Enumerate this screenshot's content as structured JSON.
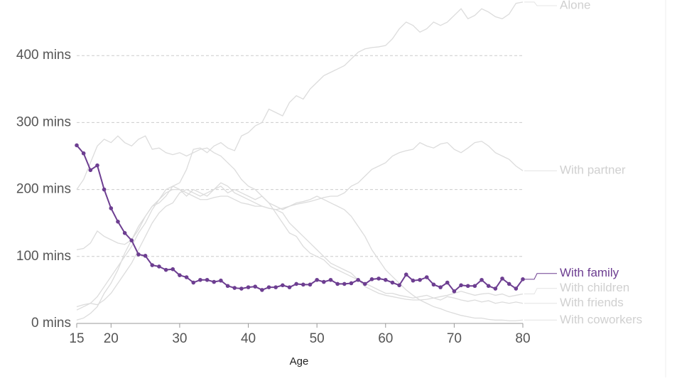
{
  "chart_data": {
    "type": "line",
    "x_label": "Age",
    "x": [
      15,
      16,
      17,
      18,
      19,
      20,
      21,
      22,
      23,
      24,
      25,
      26,
      27,
      28,
      29,
      30,
      31,
      32,
      33,
      34,
      35,
      36,
      37,
      38,
      39,
      40,
      41,
      42,
      43,
      44,
      45,
      46,
      47,
      48,
      49,
      50,
      51,
      52,
      53,
      54,
      55,
      56,
      57,
      58,
      59,
      60,
      61,
      62,
      63,
      64,
      65,
      66,
      67,
      68,
      69,
      70,
      71,
      72,
      73,
      74,
      75,
      76,
      77,
      78,
      79,
      80
    ],
    "xlim": [
      15,
      80
    ],
    "xticks": [
      15,
      20,
      30,
      40,
      50,
      60,
      70,
      80
    ],
    "ylim": [
      0,
      483
    ],
    "yticks": [
      {
        "value": 0,
        "label": "0 mins"
      },
      {
        "value": 100,
        "label": "100 mins"
      },
      {
        "value": 200,
        "label": "200 mins"
      },
      {
        "value": 300,
        "label": "300 mins"
      },
      {
        "value": 400,
        "label": "400 mins"
      }
    ],
    "grid": true,
    "highlight": "With family",
    "series": [
      {
        "name": "Alone",
        "color": "#dcdcdc",
        "values": [
          110,
          112,
          120,
          138,
          130,
          125,
          120,
          118,
          125,
          140,
          160,
          175,
          180,
          190,
          205,
          210,
          230,
          260,
          262,
          255,
          265,
          270,
          262,
          258,
          280,
          285,
          295,
          300,
          320,
          315,
          310,
          330,
          340,
          335,
          350,
          360,
          370,
          375,
          380,
          385,
          395,
          405,
          410,
          412,
          413,
          415,
          425,
          440,
          450,
          445,
          435,
          440,
          450,
          445,
          450,
          460,
          470,
          455,
          460,
          470,
          465,
          458,
          455,
          462,
          478,
          480
        ]
      },
      {
        "name": "With partner",
        "color": "#dcdcdc",
        "values": [
          20,
          25,
          30,
          40,
          55,
          70,
          85,
          100,
          115,
          135,
          150,
          170,
          185,
          195,
          200,
          200,
          195,
          190,
          185,
          185,
          188,
          190,
          190,
          185,
          180,
          178,
          175,
          175,
          172,
          170,
          172,
          175,
          178,
          180,
          182,
          185,
          188,
          190,
          190,
          195,
          205,
          210,
          220,
          230,
          235,
          240,
          250,
          255,
          258,
          260,
          270,
          265,
          262,
          268,
          270,
          260,
          255,
          262,
          270,
          272,
          265,
          255,
          250,
          245,
          235,
          228
        ]
      },
      {
        "name": "With family",
        "color": "#6d3e91",
        "values": [
          266,
          254,
          229,
          236,
          200,
          172,
          152,
          135,
          124,
          103,
          101,
          87,
          85,
          80,
          81,
          72,
          69,
          61,
          65,
          65,
          62,
          64,
          56,
          53,
          52,
          54,
          55,
          50,
          54,
          54,
          57,
          54,
          59,
          58,
          58,
          65,
          62,
          65,
          59,
          59,
          60,
          65,
          59,
          66,
          67,
          65,
          61,
          57,
          73,
          64,
          65,
          69,
          58,
          54,
          61,
          48,
          57,
          56,
          56,
          65,
          56,
          52,
          67,
          59,
          52,
          66
        ]
      },
      {
        "name": "With children",
        "color": "#dcdcdc",
        "values": [
          25,
          28,
          30,
          28,
          35,
          45,
          60,
          75,
          90,
          110,
          130,
          150,
          165,
          175,
          180,
          195,
          200,
          195,
          190,
          195,
          200,
          210,
          205,
          195,
          190,
          185,
          180,
          175,
          172,
          170,
          165,
          150,
          140,
          130,
          120,
          110,
          100,
          90,
          85,
          80,
          75,
          65,
          55,
          50,
          45,
          42,
          40,
          38,
          36,
          35,
          35,
          36,
          38,
          40,
          42,
          45,
          48,
          45,
          42,
          44,
          45,
          42,
          44,
          40,
          42,
          44
        ]
      },
      {
        "name": "With friends",
        "color": "#dcdcdc",
        "values": [
          200,
          215,
          240,
          265,
          275,
          270,
          280,
          270,
          265,
          275,
          280,
          260,
          262,
          255,
          252,
          255,
          250,
          255,
          260,
          262,
          255,
          250,
          240,
          230,
          215,
          205,
          200,
          190,
          180,
          165,
          150,
          135,
          130,
          115,
          105,
          100,
          95,
          85,
          80,
          75,
          70,
          65,
          60,
          55,
          50,
          45,
          45,
          42,
          40,
          38,
          40,
          42,
          38,
          35,
          40,
          38,
          35,
          33,
          35,
          32,
          34,
          30,
          32,
          30,
          32,
          30
        ]
      },
      {
        "name": "With coworkers",
        "color": "#dcdcdc",
        "values": [
          5,
          8,
          15,
          25,
          45,
          60,
          80,
          105,
          125,
          145,
          160,
          175,
          185,
          200,
          205,
          200,
          190,
          200,
          195,
          190,
          200,
          205,
          195,
          200,
          195,
          190,
          185,
          190,
          180,
          175,
          170,
          175,
          180,
          182,
          185,
          190,
          185,
          180,
          175,
          170,
          160,
          145,
          130,
          110,
          95,
          80,
          70,
          60,
          50,
          42,
          35,
          30,
          25,
          22,
          18,
          15,
          12,
          10,
          8,
          8,
          6,
          5,
          5,
          4,
          4,
          5
        ]
      }
    ]
  }
}
